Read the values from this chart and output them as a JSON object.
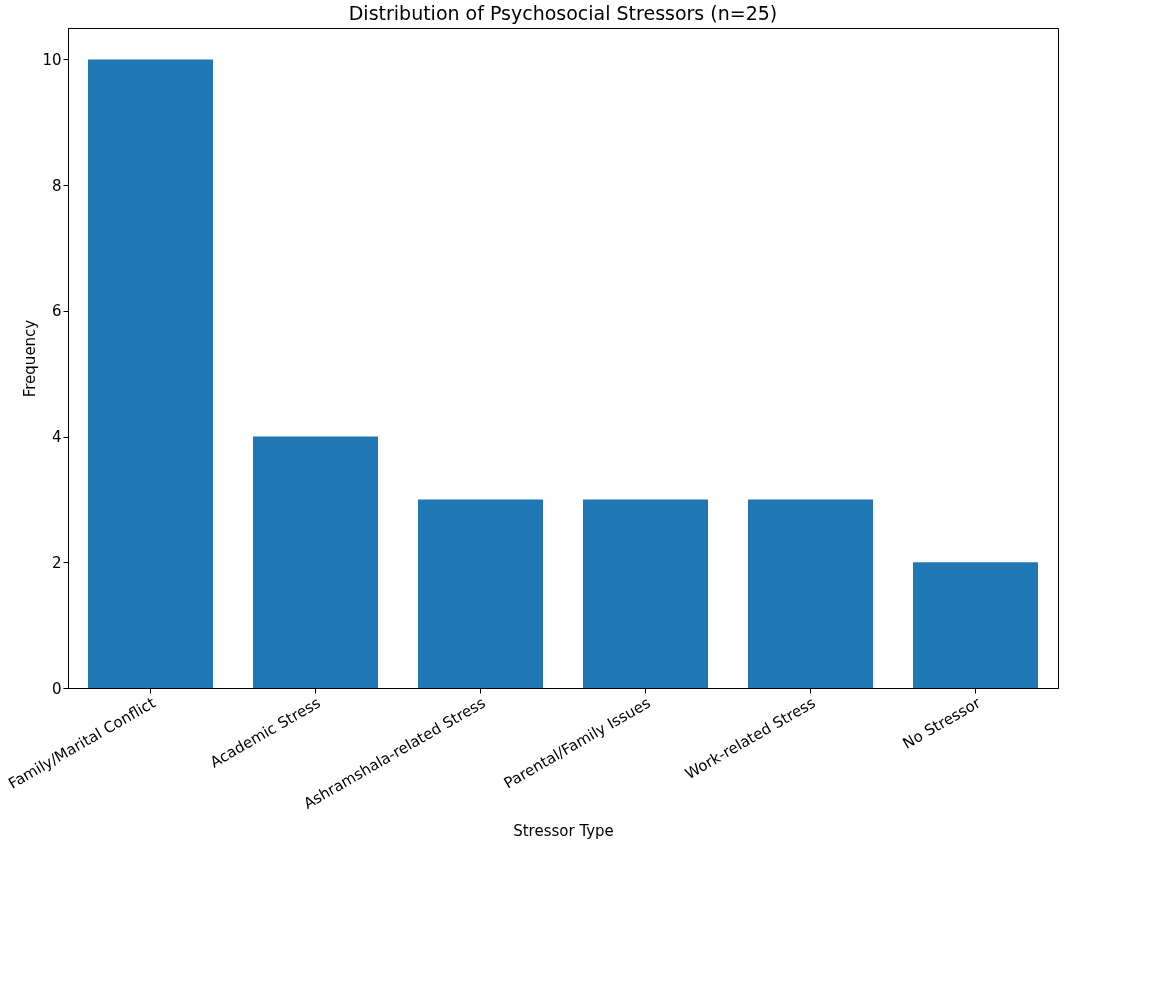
{
  "chart_data": {
    "type": "bar",
    "title": "Distribution of Psychosocial Stressors (n=25)",
    "xlabel": "Stressor Type",
    "ylabel": "Frequency",
    "categories": [
      "Family/Marital Conflict",
      "Academic Stress",
      "Ashramshala-related Stress",
      "Parental/Family Issues",
      "Work-related Stress",
      "No Stressor"
    ],
    "values": [
      10,
      4,
      3,
      3,
      3,
      2
    ],
    "color": "#1f77b4",
    "ylim": [
      0,
      10.5
    ],
    "yticks": [
      0,
      2,
      4,
      6,
      8,
      10
    ]
  }
}
